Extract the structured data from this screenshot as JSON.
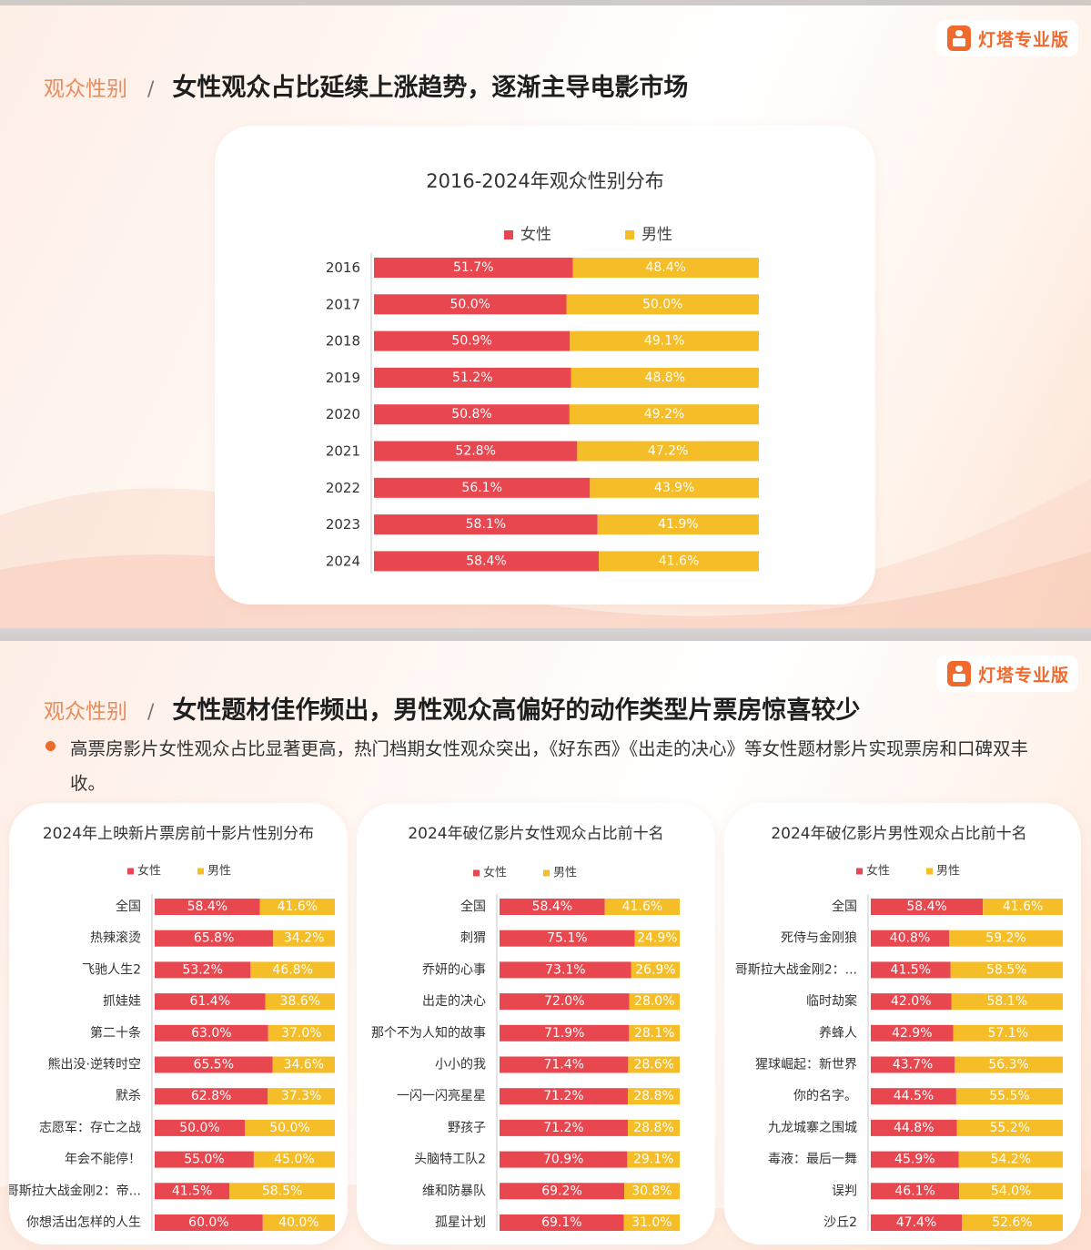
{
  "logo": {
    "text": "灯塔专业版"
  },
  "colors": {
    "female": "#e8474f",
    "male": "#f5bd28",
    "accent": "#ee6a2a"
  },
  "slide1": {
    "section_label": "观众性别",
    "separator": "/",
    "headline": "女性观众占比延续上涨趋势，逐渐主导电影市场"
  },
  "slide2": {
    "section_label": "观众性别",
    "separator": "/",
    "headline": "女性题材佳作频出，男性观众高偏好的动作类型片票房惊喜较少",
    "bullet": "高票房影片女性观众占比显著更高，热门档期女性观众突出，《好东西》《出走的决心》等女性题材影片实现票房和口碑双丰收。"
  },
  "chart_data": [
    {
      "type": "bar",
      "stacked": true,
      "orientation": "horizontal",
      "title": "2016-2024年观众性别分布",
      "legend": "top",
      "categories": [
        "2016",
        "2017",
        "2018",
        "2019",
        "2020",
        "2021",
        "2022",
        "2023",
        "2024"
      ],
      "series": [
        {
          "name": "女性",
          "values": [
            51.7,
            50.0,
            50.9,
            51.2,
            50.8,
            52.8,
            56.1,
            58.1,
            58.4
          ],
          "labels": [
            "51.7%",
            "50.0%",
            "50.9%",
            "51.2%",
            "50.8%",
            "52.8%",
            "56.1%",
            "58.1%",
            "58.4%"
          ]
        },
        {
          "name": "男性",
          "values": [
            48.4,
            50.0,
            49.1,
            48.8,
            49.2,
            47.2,
            43.9,
            41.9,
            41.6
          ],
          "labels": [
            "48.4%",
            "50.0%",
            "49.1%",
            "48.8%",
            "49.2%",
            "47.2%",
            "43.9%",
            "41.9%",
            "41.6%"
          ]
        }
      ],
      "xlim": [
        0,
        100
      ]
    },
    {
      "type": "bar",
      "stacked": true,
      "orientation": "horizontal",
      "title": "2024年上映新片票房前十影片性别分布",
      "legend": "top",
      "categories": [
        "全国",
        "热辣滚烫",
        "飞驰人生2",
        "抓娃娃",
        "第二十条",
        "熊出没·逆转时空",
        "默杀",
        "志愿军：存亡之战",
        "年会不能停！",
        "哥斯拉大战金刚2：帝...",
        "你想活出怎样的人生"
      ],
      "series": [
        {
          "name": "女性",
          "values": [
            58.4,
            65.8,
            53.2,
            61.4,
            63.0,
            65.5,
            62.8,
            50.0,
            55.0,
            41.5,
            60.0
          ],
          "labels": [
            "58.4%",
            "65.8%",
            "53.2%",
            "61.4%",
            "63.0%",
            "65.5%",
            "62.8%",
            "50.0%",
            "55.0%",
            "41.5%",
            "60.0%"
          ]
        },
        {
          "name": "男性",
          "values": [
            41.6,
            34.2,
            46.8,
            38.6,
            37.0,
            34.6,
            37.3,
            50.0,
            45.0,
            58.5,
            40.0
          ],
          "labels": [
            "41.6%",
            "34.2%",
            "46.8%",
            "38.6%",
            "37.0%",
            "34.6%",
            "37.3%",
            "50.0%",
            "45.0%",
            "58.5%",
            "40.0%"
          ]
        }
      ],
      "xlim": [
        0,
        100
      ]
    },
    {
      "type": "bar",
      "stacked": true,
      "orientation": "horizontal",
      "title": "2024年破亿影片女性观众占比前十名",
      "legend": "top",
      "categories": [
        "全国",
        "刺猬",
        "乔妍的心事",
        "出走的决心",
        "那个不为人知的故事",
        "小小的我",
        "一闪一闪亮星星",
        "野孩子",
        "头脑特工队2",
        "维和防暴队",
        "孤星计划"
      ],
      "series": [
        {
          "name": "女性",
          "values": [
            58.4,
            75.1,
            73.1,
            72.0,
            71.9,
            71.4,
            71.2,
            71.2,
            70.9,
            69.2,
            69.1
          ],
          "labels": [
            "58.4%",
            "75.1%",
            "73.1%",
            "72.0%",
            "71.9%",
            "71.4%",
            "71.2%",
            "71.2%",
            "70.9%",
            "69.2%",
            "69.1%"
          ]
        },
        {
          "name": "男性",
          "values": [
            41.6,
            24.9,
            26.9,
            28.0,
            28.1,
            28.6,
            28.8,
            28.8,
            29.1,
            30.8,
            31.0
          ],
          "labels": [
            "41.6%",
            "24.9%",
            "26.9%",
            "28.0%",
            "28.1%",
            "28.6%",
            "28.8%",
            "28.8%",
            "29.1%",
            "30.8%",
            "31.0%"
          ]
        }
      ],
      "xlim": [
        0,
        100
      ]
    },
    {
      "type": "bar",
      "stacked": true,
      "orientation": "horizontal",
      "title": "2024年破亿影片男性观众占比前十名",
      "legend": "top",
      "categories": [
        "全国",
        "死侍与金刚狼",
        "哥斯拉大战金刚2：...",
        "临时劫案",
        "养蜂人",
        "猩球崛起：新世界",
        "你的名字。",
        "九龙城寨之围城",
        "毒液：最后一舞",
        "误判",
        "沙丘2"
      ],
      "series": [
        {
          "name": "女性",
          "values": [
            58.4,
            40.8,
            41.5,
            42.0,
            42.9,
            43.7,
            44.5,
            44.8,
            45.9,
            46.1,
            47.4
          ],
          "labels": [
            "58.4%",
            "40.8%",
            "41.5%",
            "42.0%",
            "42.9%",
            "43.7%",
            "44.5%",
            "44.8%",
            "45.9%",
            "46.1%",
            "47.4%"
          ]
        },
        {
          "name": "男性",
          "values": [
            41.6,
            59.2,
            58.5,
            58.1,
            57.1,
            56.3,
            55.5,
            55.2,
            54.2,
            54.0,
            52.6
          ],
          "labels": [
            "41.6%",
            "59.2%",
            "58.5%",
            "58.1%",
            "57.1%",
            "56.3%",
            "55.5%",
            "55.2%",
            "54.2%",
            "54.0%",
            "52.6%"
          ]
        }
      ],
      "xlim": [
        0,
        100
      ]
    }
  ]
}
